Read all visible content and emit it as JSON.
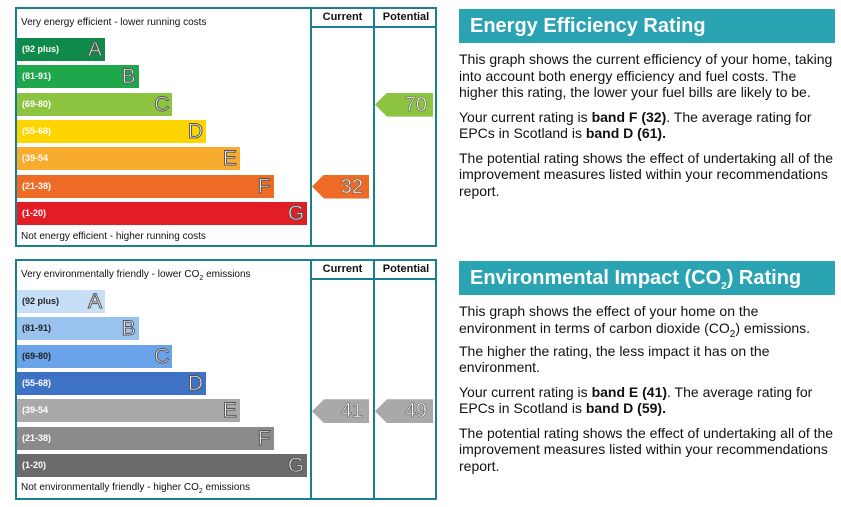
{
  "energy": {
    "chart": {
      "top_label": "Very energy efficient - lower running costs",
      "bottom_label": "Not energy efficient - higher running costs",
      "col_current": "Current",
      "col_potential": "Potential",
      "bands": [
        {
          "range": "(92 plus)",
          "letter": "A",
          "color": "#0f8a4a"
        },
        {
          "range": "(81-91)",
          "letter": "B",
          "color": "#1fa84b"
        },
        {
          "range": "(69-80)",
          "letter": "C",
          "color": "#8cc43f"
        },
        {
          "range": "(55-68)",
          "letter": "D",
          "color": "#ffd500"
        },
        {
          "range": "(39-54",
          "letter": "E",
          "color": "#f7ac2e"
        },
        {
          "range": "(21-38)",
          "letter": "F",
          "color": "#ee6b26"
        },
        {
          "range": "(1-20)",
          "letter": "G",
          "color": "#e31d25"
        }
      ],
      "current": {
        "value": "32",
        "band": "F",
        "color": "#ee6b26"
      },
      "potential": {
        "value": "70",
        "band": "C",
        "color": "#8cc43f"
      }
    },
    "panel": {
      "title": "Energy Efficiency Rating",
      "p1": "This graph shows the current efficiency of your home, taking into account both energy efficiency and fuel costs. The higher this rating, the lower your fuel bills are likely to be.",
      "p2_pre": "Your current rating is ",
      "p2_band": "band F (32)",
      "p2_mid": ". The average rating for EPCs in Scotland is ",
      "p2_avg": "band D (61).",
      "p3": "The potential rating shows the effect of undertaking all of the improvement measures listed within your recommendations report."
    }
  },
  "environment": {
    "chart": {
      "top_label_pre": "Very environmentally friendly - lower CO",
      "top_label_sub": "2",
      "top_label_post": " emissions",
      "bottom_label_pre": "Not environmentally friendly - higher CO",
      "bottom_label_sub": "2",
      "bottom_label_post": " emissions",
      "col_current": "Current",
      "col_potential": "Potential",
      "bands": [
        {
          "range": "(92 plus)",
          "letter": "A",
          "color": "#c6def6"
        },
        {
          "range": "(81-91)",
          "letter": "B",
          "color": "#99c3ef"
        },
        {
          "range": "(69-80)",
          "letter": "C",
          "color": "#6aa3ea"
        },
        {
          "range": "(55-68)",
          "letter": "D",
          "color": "#3d72c4"
        },
        {
          "range": "(39-54",
          "letter": "E",
          "color": "#a9a9a9"
        },
        {
          "range": "(21-38)",
          "letter": "F",
          "color": "#8b8b8b"
        },
        {
          "range": "(1-20)",
          "letter": "G",
          "color": "#6b6b6b"
        }
      ],
      "current": {
        "value": "41",
        "band": "E",
        "color": "#a9a9a9"
      },
      "potential": {
        "value": "49",
        "band": "E",
        "color": "#a9a9a9"
      }
    },
    "panel": {
      "title_pre": "Environmental Impact (CO",
      "title_sub": "2",
      "title_post": ") Rating",
      "p1_pre": "This graph shows the effect of your home on the environment in terms of carbon dioxide (CO",
      "p1_sub": "2",
      "p1_post": ") emissions. The higher the rating, the less impact it has on the environment.",
      "p2_pre": "Your current rating is ",
      "p2_band": "band E (41)",
      "p2_mid": ". The average rating for EPCs in Scotland is ",
      "p2_avg": "band D (59).",
      "p3": "The potential rating shows the effect of undertaking all of the improvement measures listed within your recommendations report."
    }
  }
}
